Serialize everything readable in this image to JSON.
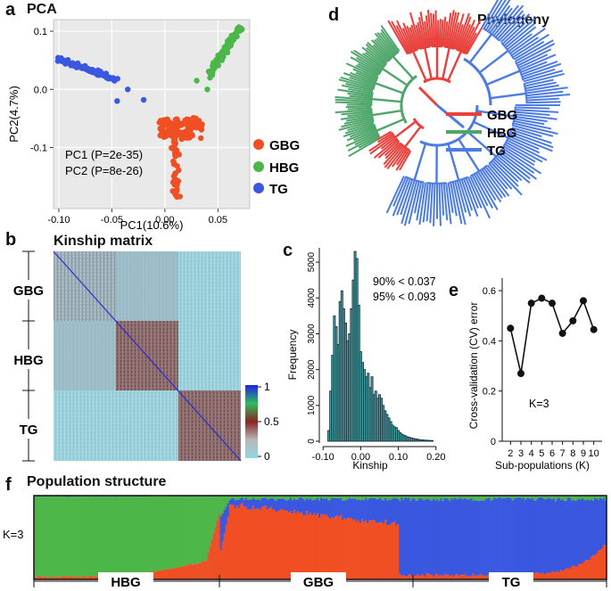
{
  "panels": {
    "a": {
      "letter": "a",
      "title": "PCA"
    },
    "b": {
      "letter": "b",
      "title": "Kinship matrix"
    },
    "c": {
      "letter": "c"
    },
    "d": {
      "letter": "d",
      "title": "Phylogeny"
    },
    "e": {
      "letter": "e"
    },
    "f": {
      "letter": "f",
      "title": "Population structure"
    }
  },
  "colors": {
    "GBG": "#f04e23",
    "HBG": "#4cb748",
    "TG": "#3a57e0",
    "tree_red": "#e9403b",
    "tree_green": "#4fa66b",
    "tree_blue": "#4c7be4"
  },
  "chart_data": [
    {
      "id": "pca",
      "type": "scatter",
      "title": "PCA",
      "xlabel": "PC1(10.6%)",
      "ylabel": "PC2(4.7%)",
      "xlim": [
        -0.105,
        0.08
      ],
      "ylim": [
        -0.205,
        0.12
      ],
      "xticks": [
        "-0.10",
        "-0.05",
        "0.00",
        "0.05"
      ],
      "yticks": [
        "0.1",
        "0.0",
        "-0.1"
      ],
      "annotations": [
        "PC1 (P=2e-35)",
        "PC2 (P=8e-26)"
      ],
      "legend": [
        "GBG",
        "HBG",
        "TG"
      ],
      "series": [
        {
          "name": "GBG",
          "centroid": [
            0.01,
            -0.075
          ],
          "spread": [
            0.018,
            0.012
          ],
          "tail": [
            0.005,
            -0.185
          ]
        },
        {
          "name": "HBG",
          "centroid": [
            0.058,
            0.045
          ],
          "spread": [
            0.012,
            0.04
          ]
        },
        {
          "name": "TG",
          "centroid": [
            -0.072,
            0.03
          ],
          "spread": [
            0.028,
            0.015
          ]
        }
      ]
    },
    {
      "id": "kinship",
      "type": "heatmap",
      "title": "Kinship matrix",
      "groups": [
        "GBG",
        "HBG",
        "TG"
      ],
      "colorbar_ticks": [
        "1",
        "0.5",
        "0"
      ]
    },
    {
      "id": "kinship_hist",
      "type": "bar",
      "xlabel": "Kinship",
      "ylabel": "Frequency",
      "xticks": [
        "-0.10",
        "0.00",
        "0.10",
        "0.20"
      ],
      "yticks": [
        "0",
        "1000",
        "2000",
        "3000",
        "4000",
        "5000"
      ],
      "ylim": [
        0,
        5400
      ],
      "annotations": [
        "90% < 0.037",
        "95% < 0.093"
      ],
      "x": [
        -0.085,
        -0.08,
        -0.075,
        -0.07,
        -0.065,
        -0.06,
        -0.055,
        -0.05,
        -0.045,
        -0.04,
        -0.035,
        -0.03,
        -0.025,
        -0.02,
        -0.015,
        -0.01,
        -0.005,
        0.0,
        0.005,
        0.01,
        0.015,
        0.02,
        0.025,
        0.03,
        0.035,
        0.04,
        0.045,
        0.05,
        0.055,
        0.06,
        0.065,
        0.07,
        0.075,
        0.08,
        0.085,
        0.09,
        0.095,
        0.1,
        0.105,
        0.11,
        0.115,
        0.12,
        0.125,
        0.13,
        0.135,
        0.14,
        0.145,
        0.15,
        0.155,
        0.16,
        0.165,
        0.17,
        0.175,
        0.18,
        0.185,
        0.19
      ],
      "values": [
        300,
        1400,
        2400,
        3500,
        3200,
        2700,
        3900,
        4200,
        3700,
        3300,
        2800,
        3000,
        3700,
        4500,
        5300,
        5100,
        3800,
        2500,
        2200,
        2000,
        1800,
        1900,
        1500,
        1800,
        1300,
        1400,
        1200,
        1300,
        1200,
        1000,
        850,
        750,
        650,
        550,
        450,
        400,
        380,
        300,
        240,
        200,
        170,
        150,
        120,
        110,
        90,
        80,
        70,
        60,
        50,
        40,
        40,
        30,
        30,
        25,
        20,
        20
      ]
    },
    {
      "id": "cv_error",
      "type": "line",
      "xlabel": "Sub-populations (K)",
      "ylabel": "Cross-validation (CV) error",
      "xlim": [
        1.2,
        10.8
      ],
      "ylim": [
        0,
        0.65
      ],
      "xticks": [
        "2",
        "3",
        "4",
        "5",
        "6",
        "7",
        "8",
        "9",
        "10"
      ],
      "yticks": [
        "0",
        "0.2",
        "0.4",
        "0.6"
      ],
      "annotation": "K=3",
      "x": [
        2,
        3,
        4,
        5,
        6,
        7,
        8,
        9,
        10
      ],
      "values": [
        0.45,
        0.27,
        0.55,
        0.57,
        0.55,
        0.43,
        0.48,
        0.56,
        0.445
      ]
    },
    {
      "id": "structure",
      "type": "area",
      "title": "Population structure",
      "ylabel": "K=3",
      "groups": [
        "HBG",
        "GBG",
        "TG"
      ],
      "group_extent": [
        0.33,
        0.63,
        1.0
      ]
    }
  ],
  "tree_legend": [
    "GBG",
    "HBG",
    "TG"
  ]
}
